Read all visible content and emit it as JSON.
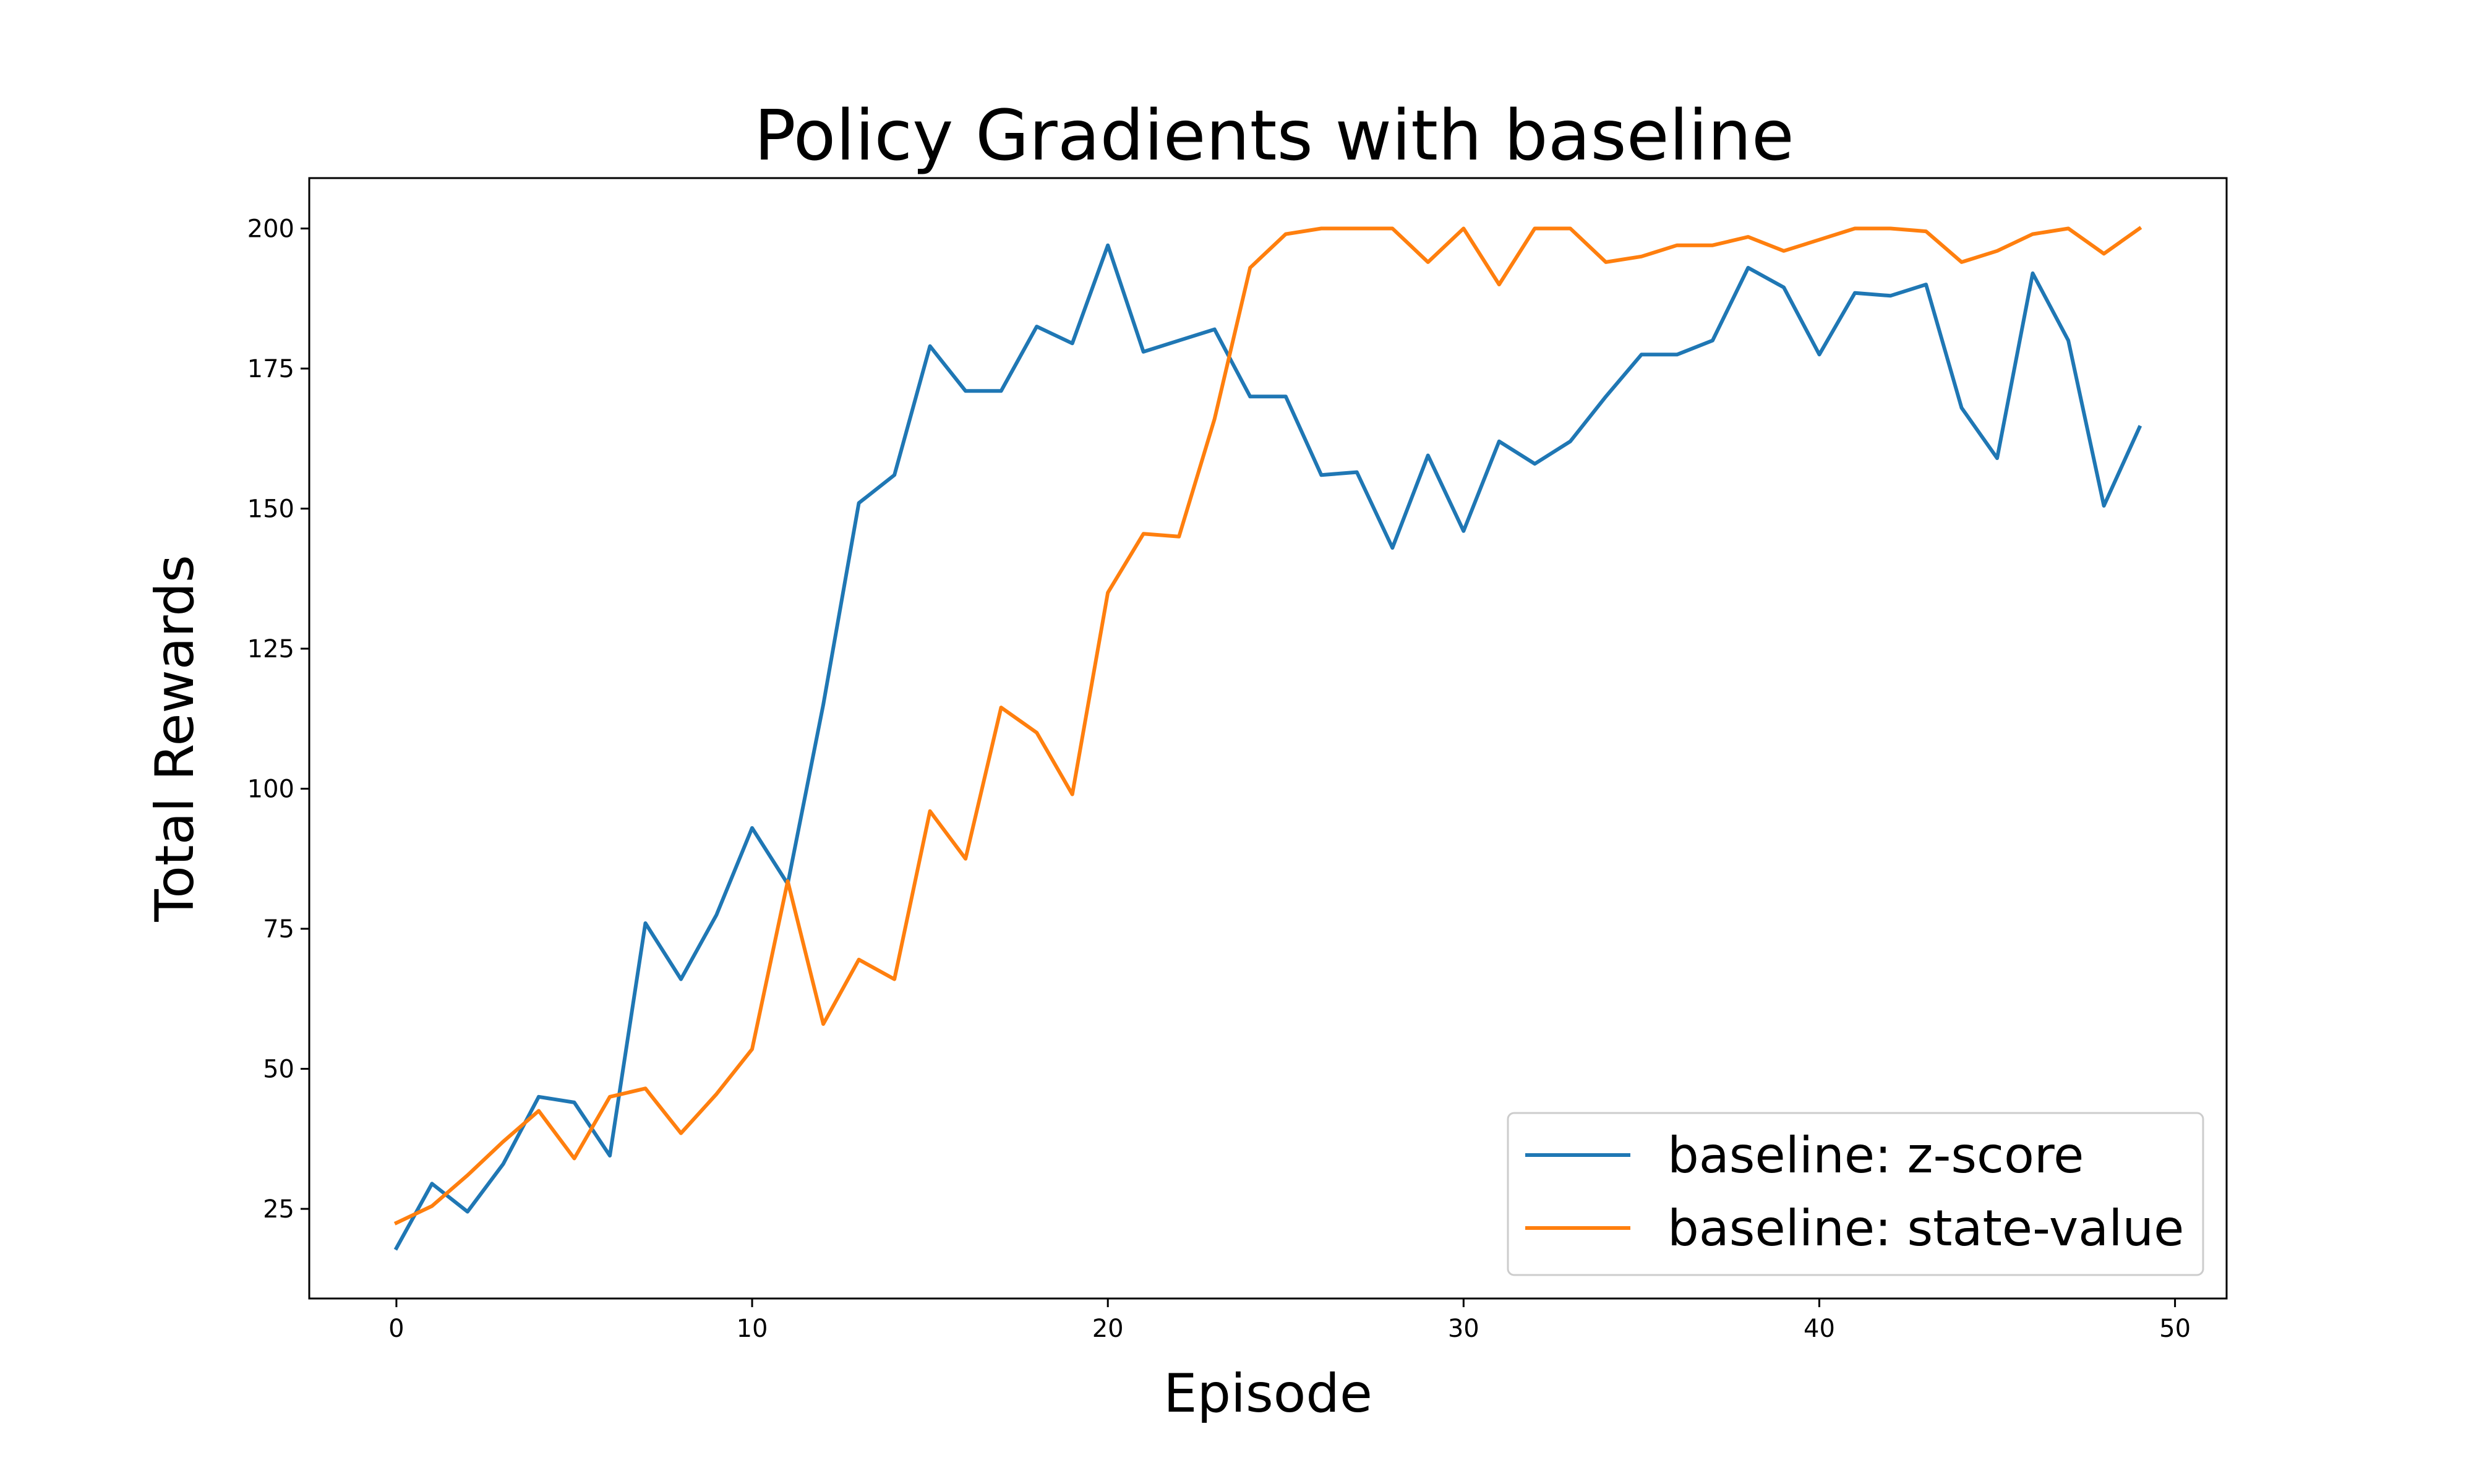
{
  "chart_data": {
    "type": "line",
    "title": "Policy Gradients with baseline",
    "xlabel": "Episode",
    "ylabel": "Total Rewards",
    "xlim": [
      -2.45,
      51.45
    ],
    "ylim": [
      9,
      209
    ],
    "xticks": [
      0,
      10,
      20,
      30,
      40,
      50
    ],
    "yticks": [
      25,
      50,
      75,
      100,
      125,
      150,
      175,
      200
    ],
    "grid": false,
    "legend_position": "lower-right",
    "x": [
      0,
      1,
      2,
      3,
      4,
      5,
      6,
      7,
      8,
      9,
      10,
      11,
      12,
      13,
      14,
      15,
      16,
      17,
      18,
      19,
      20,
      21,
      22,
      23,
      24,
      25,
      26,
      27,
      28,
      29,
      30,
      31,
      32,
      33,
      34,
      35,
      36,
      37,
      38,
      39,
      40,
      41,
      42,
      43,
      44,
      45,
      46,
      47,
      48,
      49
    ],
    "series": [
      {
        "name": "baseline: z-score",
        "color": "#1f77b4",
        "values": [
          18,
          29.5,
          24.5,
          33,
          45,
          44,
          34.5,
          76,
          66,
          77.5,
          93,
          83,
          115,
          151,
          156,
          179,
          171,
          171,
          182.5,
          179.5,
          197,
          178,
          180,
          182,
          170,
          170,
          156,
          156.5,
          143,
          159.5,
          146,
          162,
          158,
          162,
          170,
          177.5,
          177.5,
          180,
          193,
          189.5,
          177.5,
          188.5,
          188,
          190,
          168,
          159,
          192,
          180,
          150.5,
          164.5
        ]
      },
      {
        "name": "baseline: state-value",
        "color": "#ff7f0e",
        "values": [
          22.5,
          25.5,
          31,
          37,
          42.5,
          34,
          45,
          46.5,
          38.5,
          45.5,
          53.5,
          83.5,
          58,
          69.5,
          66,
          96,
          87.5,
          114.5,
          110,
          99,
          135,
          145.5,
          145,
          166,
          193,
          199,
          200,
          200,
          200,
          194,
          200,
          190,
          200,
          200,
          194,
          195,
          197,
          197,
          198.5,
          196,
          198,
          200,
          200,
          199.5,
          194,
          196,
          199,
          200,
          195.5,
          200
        ]
      }
    ]
  }
}
